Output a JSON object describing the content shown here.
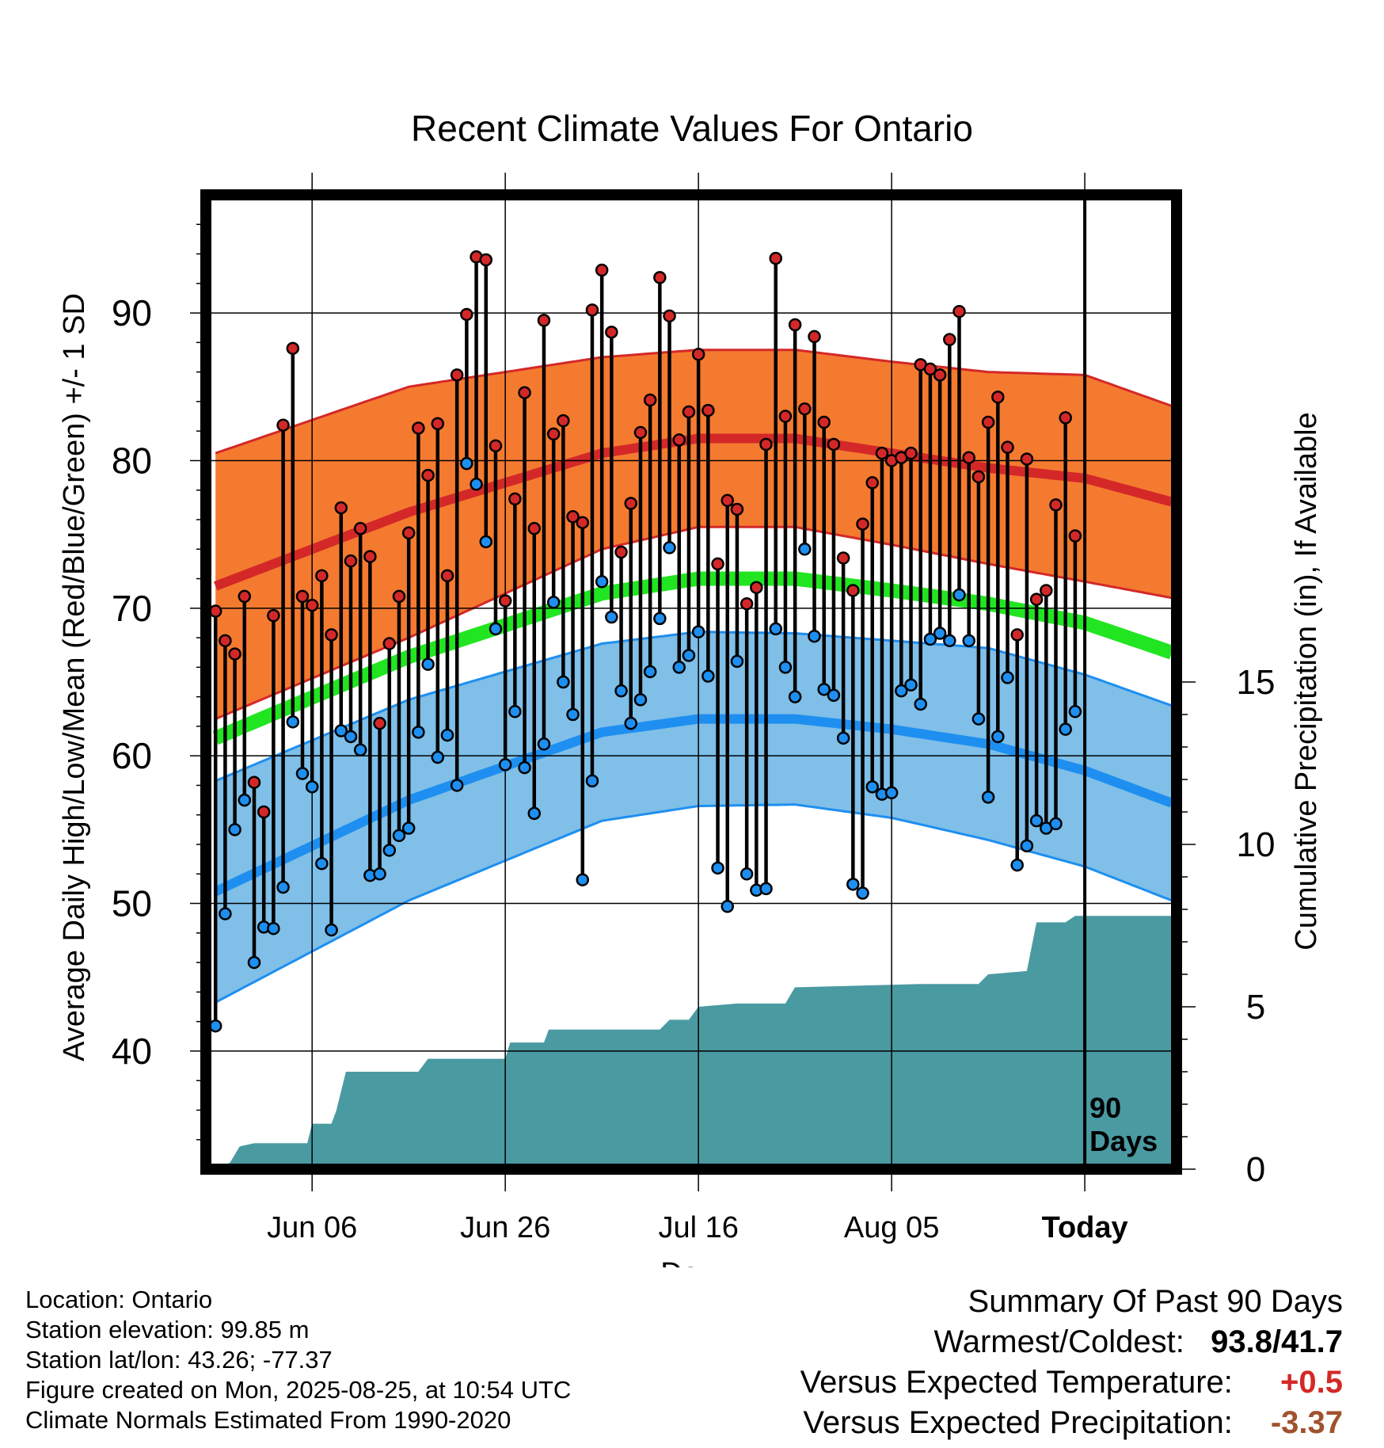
{
  "chart_data": {
    "type": "line",
    "title": "Recent Climate Values For Ontario",
    "xlabel": "Day",
    "ylabel": "Average Daily High/Low/Mean (Red/Blue/Green) +/- 1 SD",
    "y2label": "Cumulative Precipitation (in), If Available",
    "x_tick_labels": [
      "Jun 06",
      "Jun 26",
      "Jul 16",
      "Aug 05",
      "Today"
    ],
    "x_tick_days": [
      10,
      30,
      50,
      70,
      90
    ],
    "xlim": [
      -1,
      99.5
    ],
    "ylim": [
      32,
      98
    ],
    "y_ticks": [
      40,
      50,
      60,
      70,
      80,
      90
    ],
    "y2lim": [
      0,
      30
    ],
    "y2_ticks": [
      0,
      5,
      10,
      15
    ],
    "today_marker": {
      "day": 90,
      "label_line1": "90",
      "label_line2": "Days"
    },
    "colors": {
      "high": "#d42828",
      "low": "#1e8ff0",
      "mean": "#22e522",
      "high_band": "#f47a30",
      "low_band": "#7fbfe8",
      "precip": "#4a9aa2"
    },
    "normals": {
      "days": [
        0,
        20,
        40,
        50,
        60,
        70,
        80,
        90,
        99
      ],
      "high": [
        71.5,
        76.5,
        80.5,
        81.5,
        81.5,
        80.5,
        79.5,
        78.8,
        77.2
      ],
      "high_sd": [
        9,
        8.5,
        6.5,
        6,
        6,
        6.2,
        6.5,
        7,
        6.5
      ],
      "low": [
        50.8,
        57.0,
        61.6,
        62.5,
        62.5,
        61.8,
        60.8,
        59.0,
        56.8
      ],
      "low_sd": [
        7.5,
        6.8,
        6,
        5.9,
        5.8,
        6,
        6.5,
        6.5,
        6.6
      ],
      "mean": [
        61.2,
        66.7,
        71.0,
        72.0,
        72.0,
        71.2,
        70.3,
        69.0,
        67.0
      ]
    },
    "daily_high": [
      69.8,
      67.8,
      66.9,
      70.8,
      58.2,
      56.2,
      69.5,
      82.4,
      87.6,
      70.8,
      70.2,
      72.2,
      68.2,
      76.8,
      73.2,
      75.4,
      73.5,
      62.2,
      67.6,
      70.8,
      75.1,
      82.2,
      79.0,
      82.5,
      72.2,
      85.8,
      89.9,
      93.8,
      93.6,
      81.0,
      70.5,
      77.4,
      84.6,
      75.4,
      89.5,
      81.8,
      82.7,
      76.2,
      75.8,
      90.2,
      92.9,
      88.7,
      73.8,
      77.1,
      81.9,
      84.1,
      92.4,
      89.8,
      81.4,
      83.3,
      87.2,
      83.4,
      73.0,
      77.3,
      76.7,
      70.3,
      71.4,
      81.1,
      93.7,
      83.0,
      89.2,
      83.5,
      88.4,
      82.6,
      81.1,
      73.4,
      71.2,
      75.7,
      78.5,
      80.5,
      80.0,
      80.2,
      80.5,
      86.5,
      86.2,
      85.8,
      88.2,
      90.1,
      80.2,
      78.9,
      82.6,
      84.3,
      80.9,
      68.2,
      80.1,
      70.6,
      71.2,
      77.0,
      82.9,
      74.9
    ],
    "daily_low": [
      41.7,
      49.3,
      55.0,
      57.0,
      46.0,
      48.4,
      48.3,
      51.1,
      62.3,
      58.8,
      57.9,
      52.7,
      48.2,
      61.7,
      61.3,
      60.4,
      51.9,
      52.0,
      53.6,
      54.6,
      55.1,
      61.6,
      66.2,
      59.9,
      61.4,
      58.0,
      79.8,
      78.4,
      74.5,
      68.6,
      59.4,
      63.0,
      59.2,
      56.1,
      60.8,
      70.4,
      65.0,
      62.8,
      51.6,
      58.3,
      71.8,
      69.4,
      64.4,
      62.2,
      63.8,
      65.7,
      69.3,
      74.1,
      66.0,
      66.8,
      68.4,
      65.4,
      52.4,
      49.8,
      66.4,
      52.0,
      50.9,
      51.0,
      68.6,
      66.0,
      64.0,
      74.0,
      68.1,
      64.5,
      64.1,
      61.2,
      51.3,
      50.7,
      57.9,
      57.4,
      57.5,
      64.4,
      64.8,
      63.5,
      67.9,
      68.3,
      67.8,
      70.9,
      67.8,
      62.5,
      57.2,
      61.3,
      65.3,
      52.6,
      53.9,
      55.6,
      55.1,
      55.4,
      61.8,
      63.0
    ],
    "precip": {
      "days": [
        0,
        1.5,
        2.5,
        4,
        9.5,
        10,
        12,
        12.5,
        13.5,
        21,
        22,
        30,
        30.5,
        34,
        34.5,
        46,
        47,
        49,
        50,
        54,
        59,
        60,
        73,
        79,
        80,
        84,
        85,
        88,
        89,
        99.5
      ],
      "total": [
        0,
        0.2,
        0.7,
        0.8,
        0.8,
        1.4,
        1.4,
        1.8,
        3.0,
        3.0,
        3.4,
        3.4,
        3.9,
        3.9,
        4.3,
        4.3,
        4.6,
        4.6,
        5.0,
        5.1,
        5.1,
        5.6,
        5.7,
        5.7,
        6.0,
        6.1,
        7.6,
        7.6,
        7.8,
        7.8
      ]
    }
  },
  "info": {
    "location": "Location: Ontario",
    "elevation": "Station elevation: 99.85 m",
    "latlon": "Station lat/lon: 43.26; -77.37",
    "created": "Figure created on Mon, 2025-08-25, at 10:54 UTC",
    "normals": "Climate Normals Estimated From 1990-2020"
  },
  "summary": {
    "heading": "Summary Of Past 90 Days",
    "warm_cold_label": "Warmest/Coldest:",
    "warmest": "93.8",
    "sep": "/",
    "coldest": "41.7",
    "temp_label": "Versus Expected Temperature:",
    "temp_value": "+0.5",
    "temp_color": "#d42828",
    "precip_label": "Versus Expected Precipitation:",
    "precip_value": "-3.37",
    "precip_color": "#a0522d"
  }
}
